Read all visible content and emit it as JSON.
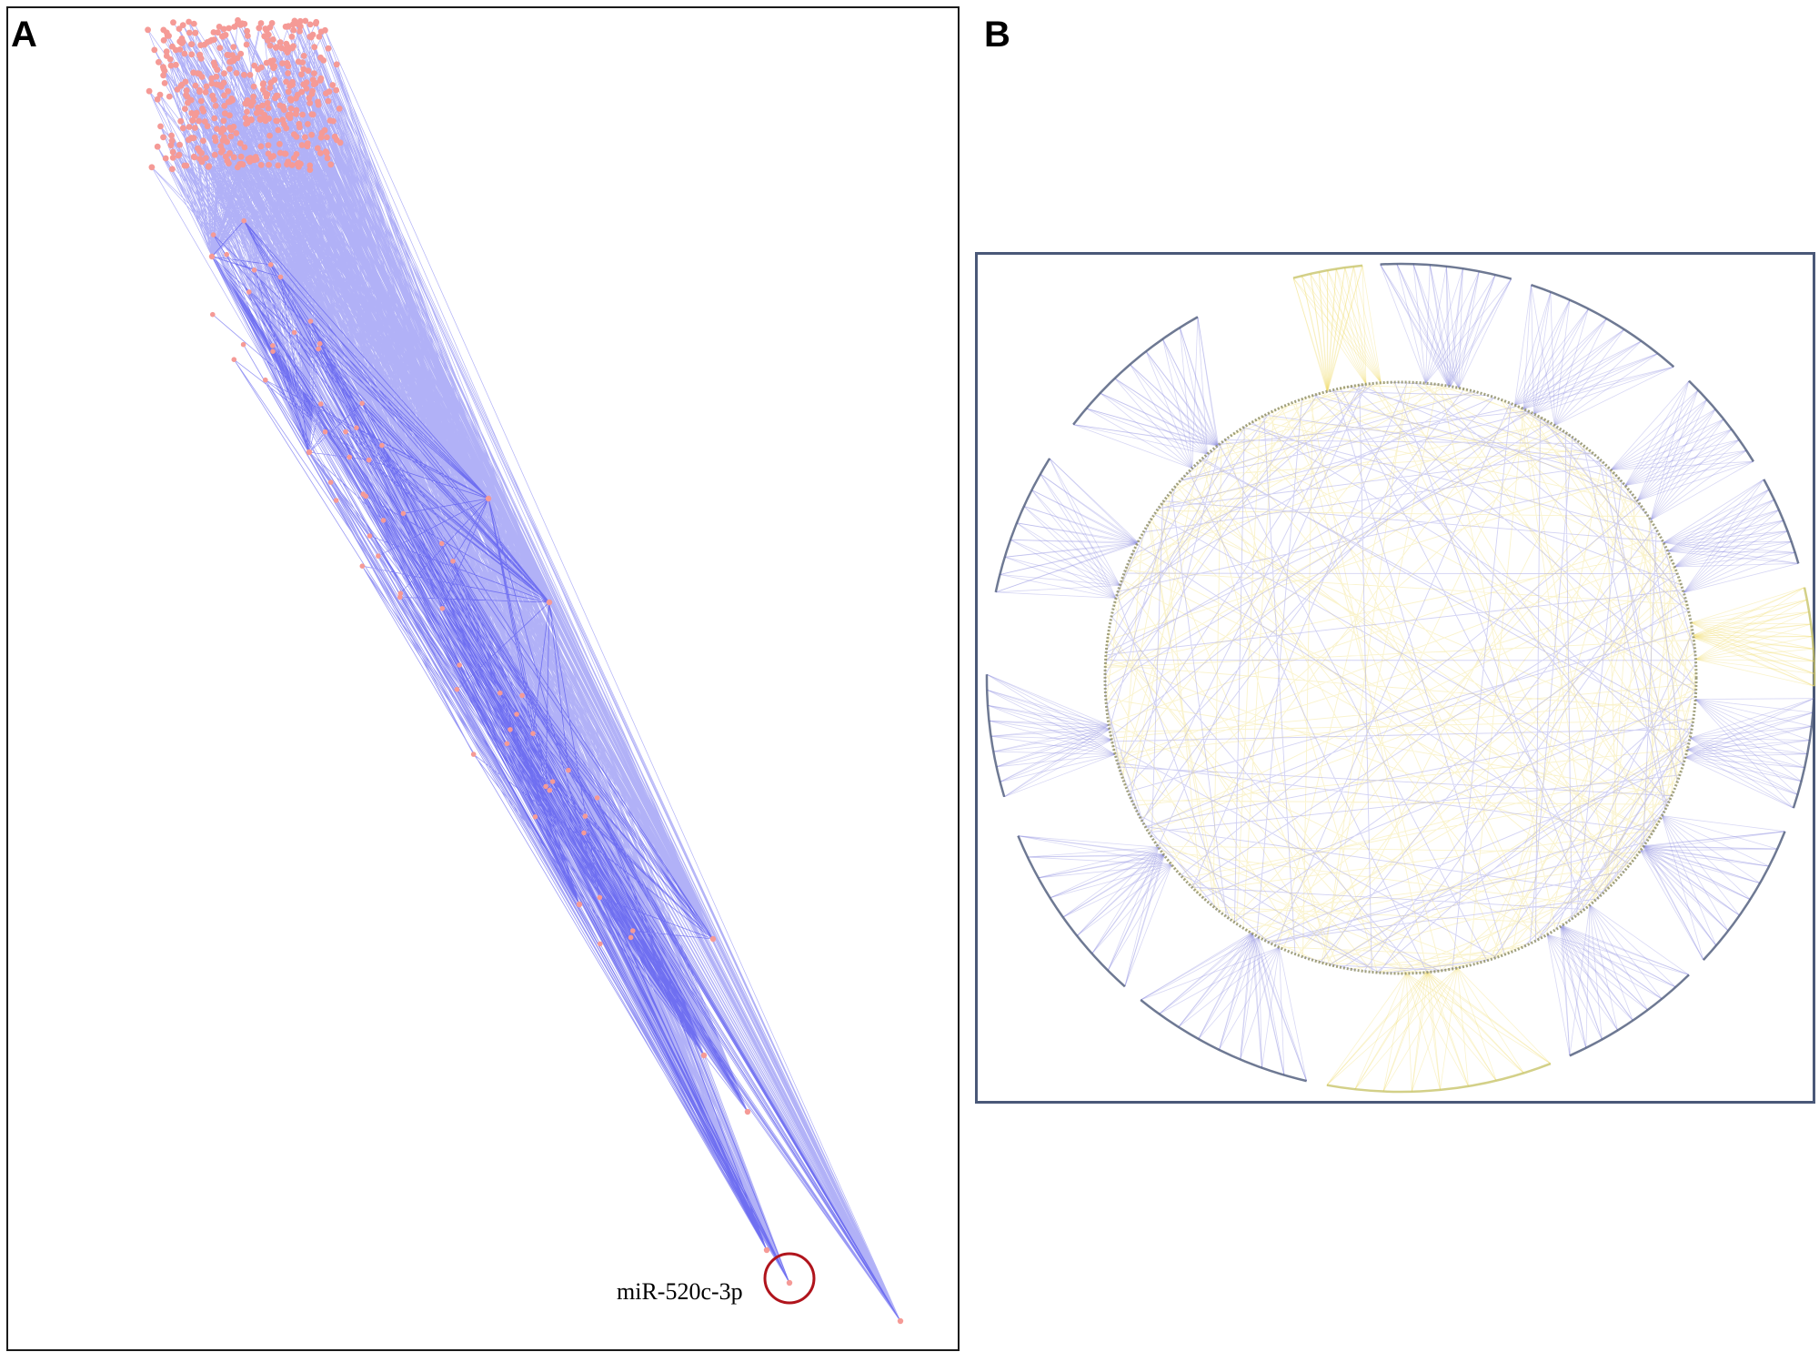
{
  "panels": [
    {
      "letter": "A"
    },
    {
      "letter": "B"
    }
  ],
  "panel_a": {
    "highlighted_node_label": "miR-520c-3p"
  },
  "colors": {
    "node": "#f59a96",
    "edge_a": "#1f1fe8",
    "edge_b_blue": "#8c8ce0",
    "edge_b_yellow": "#f0dc6e",
    "highlight_circle": "#b0141c",
    "frame_b": "#4a5878"
  }
}
